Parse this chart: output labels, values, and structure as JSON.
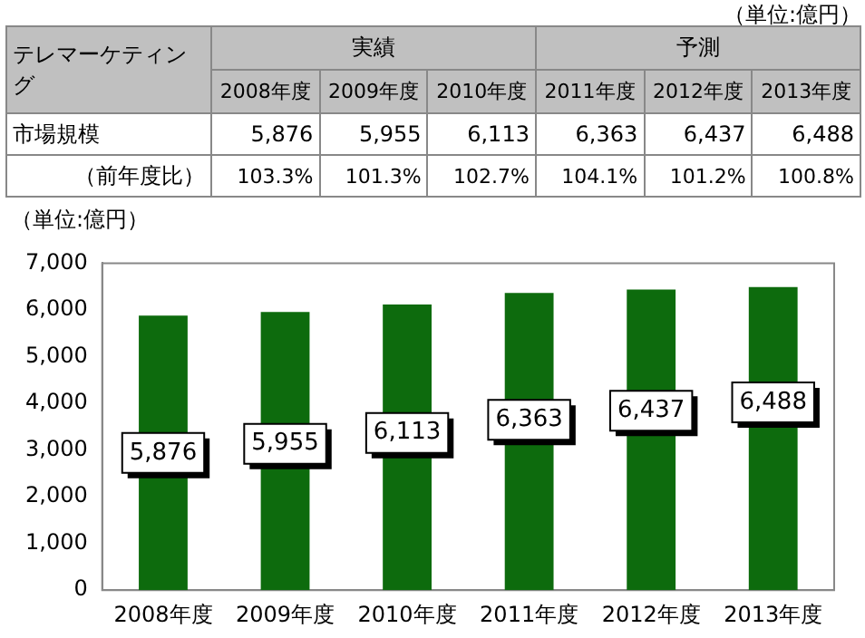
{
  "chart_data": {
    "type": "bar",
    "ylabel": "（単位:億円）",
    "categories": [
      "2008年度",
      "2009年度",
      "2010年度",
      "2011年度",
      "2012年度",
      "2013年度"
    ],
    "values": [
      5876,
      5955,
      6113,
      6363,
      6437,
      6488
    ],
    "value_labels": [
      "5,876",
      "5,955",
      "6,113",
      "6,363",
      "6,437",
      "6,488"
    ],
    "color": "#0d6b0d",
    "ylim": [
      0,
      7000
    ],
    "yticks": [
      {
        "value": 0,
        "label": "0"
      },
      {
        "value": 1000,
        "label": "1,000"
      },
      {
        "value": 2000,
        "label": "2,000"
      },
      {
        "value": 3000,
        "label": "3,000"
      },
      {
        "value": 4000,
        "label": "4,000"
      },
      {
        "value": 5000,
        "label": "5,000"
      },
      {
        "value": 6000,
        "label": "6,000"
      },
      {
        "value": 7000,
        "label": "7,000"
      }
    ],
    "grid": false,
    "annotations": [
      "（単位:億円）",
      "テレマーケティング",
      "実績",
      "予測",
      "市場規模",
      "（前年度比）",
      "103.3%",
      "101.3%",
      "102.7%",
      "104.1%",
      "101.2%",
      "100.8%"
    ]
  }
}
